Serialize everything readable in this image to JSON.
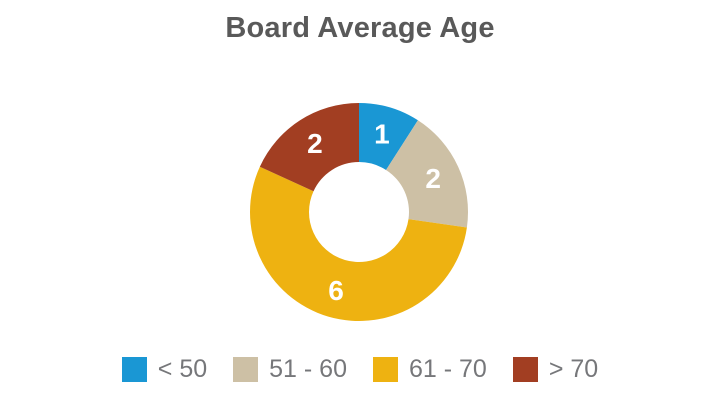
{
  "chart_data": {
    "type": "pie",
    "subtype": "donut",
    "title": "Board Average Age",
    "categories": [
      "< 50",
      "51 - 60",
      "61 - 70",
      "> 70"
    ],
    "values": [
      1,
      2,
      6,
      2
    ],
    "total": 11,
    "colors": [
      "#1a97d4",
      "#cdc0a5",
      "#eeb211",
      "#a23e22"
    ],
    "value_labels": [
      "1",
      "2",
      "6",
      "2"
    ],
    "value_label_color": "#ffffff",
    "start_angle_deg": 0,
    "direction": "clockwise",
    "inner_radius_ratio": 0.46,
    "legend_position": "bottom"
  },
  "styles": {
    "background": "#ffffff",
    "title_color": "#595959",
    "legend_text_color": "#76777a"
  }
}
